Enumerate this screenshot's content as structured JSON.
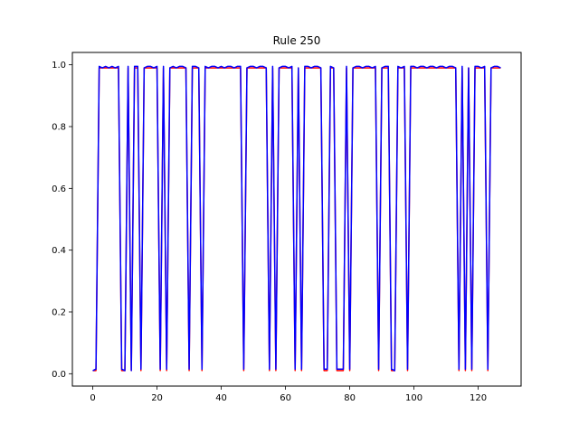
{
  "chart_data": {
    "type": "line",
    "title": "Rule 250",
    "xlabel": "",
    "ylabel": "",
    "xlim": [
      -6.35,
      133.35
    ],
    "ylim": [
      -0.04,
      1.04
    ],
    "xticks": [
      0,
      20,
      40,
      60,
      80,
      100,
      120
    ],
    "yticks": [
      0.0,
      0.2,
      0.4,
      0.6,
      0.8,
      1.0
    ],
    "ytick_labels": [
      "0.0",
      "0.2",
      "0.4",
      "0.6",
      "0.8",
      "1.0"
    ],
    "grid": false,
    "legend": "none",
    "series": [
      {
        "color": "#ff0000",
        "x": [
          0,
          1,
          2,
          3,
          4,
          5,
          6,
          7,
          8,
          9,
          10,
          11,
          12,
          13,
          14,
          15,
          16,
          17,
          18,
          19,
          20,
          21,
          22,
          23,
          24,
          25,
          26,
          27,
          28,
          29,
          30,
          31,
          32,
          33,
          34,
          35,
          36,
          37,
          38,
          39,
          40,
          41,
          42,
          43,
          44,
          45,
          46,
          47,
          48,
          49,
          50,
          51,
          52,
          53,
          54,
          55,
          56,
          57,
          58,
          59,
          60,
          61,
          62,
          63,
          64,
          65,
          66,
          67,
          68,
          69,
          70,
          71,
          72,
          73,
          74,
          75,
          76,
          77,
          78,
          79,
          80,
          81,
          82,
          83,
          84,
          85,
          86,
          87,
          88,
          89,
          90,
          91,
          92,
          93,
          94,
          95,
          96,
          97,
          98,
          99,
          100,
          101,
          102,
          103,
          104,
          105,
          106,
          107,
          108,
          109,
          110,
          111,
          112,
          113,
          114,
          115,
          116,
          117,
          118,
          119,
          120,
          121,
          122,
          123,
          124,
          125,
          126,
          127
        ],
        "y": [
          0.01,
          0.01,
          0.99,
          0.99,
          0.99,
          0.99,
          0.99,
          0.99,
          0.99,
          0.01,
          0.01,
          0.99,
          0.01,
          0.99,
          0.99,
          0.01,
          0.99,
          0.99,
          0.99,
          0.99,
          0.99,
          0.01,
          0.99,
          0.01,
          0.99,
          0.99,
          0.99,
          0.99,
          0.99,
          0.99,
          0.01,
          0.99,
          0.99,
          0.99,
          0.01,
          0.99,
          0.99,
          0.99,
          0.99,
          0.99,
          0.99,
          0.99,
          0.99,
          0.99,
          0.99,
          0.99,
          0.99,
          0.01,
          0.99,
          0.99,
          0.99,
          0.99,
          0.99,
          0.99,
          0.99,
          0.01,
          0.99,
          0.01,
          0.99,
          0.99,
          0.99,
          0.99,
          0.99,
          0.01,
          0.99,
          0.01,
          0.99,
          0.99,
          0.99,
          0.99,
          0.99,
          0.99,
          0.01,
          0.01,
          0.99,
          0.99,
          0.01,
          0.01,
          0.01,
          0.99,
          0.01,
          0.99,
          0.99,
          0.99,
          0.99,
          0.99,
          0.99,
          0.99,
          0.99,
          0.01,
          0.99,
          0.99,
          0.99,
          0.01,
          0.01,
          0.99,
          0.99,
          0.99,
          0.01,
          0.99,
          0.99,
          0.99,
          0.99,
          0.99,
          0.99,
          0.99,
          0.99,
          0.99,
          0.99,
          0.99,
          0.99,
          0.99,
          0.99,
          0.99,
          0.01,
          0.99,
          0.01,
          0.99,
          0.01,
          0.99,
          0.99,
          0.99,
          0.99,
          0.01,
          0.99,
          0.99,
          0.99,
          0.99
        ]
      },
      {
        "color": "#0000ff",
        "x": [
          0,
          1,
          2,
          3,
          4,
          5,
          6,
          7,
          8,
          9,
          10,
          11,
          12,
          13,
          14,
          15,
          16,
          17,
          18,
          19,
          20,
          21,
          22,
          23,
          24,
          25,
          26,
          27,
          28,
          29,
          30,
          31,
          32,
          33,
          34,
          35,
          36,
          37,
          38,
          39,
          40,
          41,
          42,
          43,
          44,
          45,
          46,
          47,
          48,
          49,
          50,
          51,
          52,
          53,
          54,
          55,
          56,
          57,
          58,
          59,
          60,
          61,
          62,
          63,
          64,
          65,
          66,
          67,
          68,
          69,
          70,
          71,
          72,
          73,
          74,
          75,
          76,
          77,
          78,
          79,
          80,
          81,
          82,
          83,
          84,
          85,
          86,
          87,
          88,
          89,
          90,
          91,
          92,
          93,
          94,
          95,
          96,
          97,
          98,
          99,
          100,
          101,
          102,
          103,
          104,
          105,
          106,
          107,
          108,
          109,
          110,
          111,
          112,
          113,
          114,
          115,
          116,
          117,
          118,
          119,
          120,
          121,
          122,
          123,
          124,
          125,
          126,
          127
        ],
        "y": [
          0.01,
          0.015,
          0.995,
          0.99,
          0.995,
          0.99,
          0.995,
          0.99,
          0.995,
          0.015,
          0.01,
          0.995,
          0.01,
          0.995,
          0.995,
          0.015,
          0.99,
          0.995,
          0.995,
          0.99,
          0.995,
          0.015,
          0.995,
          0.015,
          0.99,
          0.995,
          0.99,
          0.995,
          0.995,
          0.99,
          0.015,
          0.995,
          0.995,
          0.99,
          0.015,
          0.995,
          0.99,
          0.995,
          0.995,
          0.99,
          0.995,
          0.99,
          0.995,
          0.995,
          0.99,
          0.995,
          0.995,
          0.015,
          0.99,
          0.995,
          0.995,
          0.99,
          0.995,
          0.995,
          0.99,
          0.015,
          0.995,
          0.015,
          0.99,
          0.995,
          0.995,
          0.99,
          0.995,
          0.015,
          0.99,
          0.015,
          0.995,
          0.995,
          0.99,
          0.995,
          0.995,
          0.99,
          0.015,
          0.015,
          0.995,
          0.99,
          0.015,
          0.015,
          0.015,
          0.995,
          0.015,
          0.99,
          0.995,
          0.995,
          0.99,
          0.995,
          0.995,
          0.99,
          0.995,
          0.015,
          0.99,
          0.995,
          0.995,
          0.015,
          0.01,
          0.995,
          0.99,
          0.995,
          0.015,
          0.995,
          0.995,
          0.99,
          0.995,
          0.995,
          0.99,
          0.995,
          0.995,
          0.99,
          0.995,
          0.995,
          0.99,
          0.995,
          0.995,
          0.99,
          0.015,
          0.995,
          0.015,
          0.99,
          0.015,
          0.995,
          0.995,
          0.99,
          0.995,
          0.015,
          0.99,
          0.995,
          0.995,
          0.99
        ]
      }
    ]
  }
}
